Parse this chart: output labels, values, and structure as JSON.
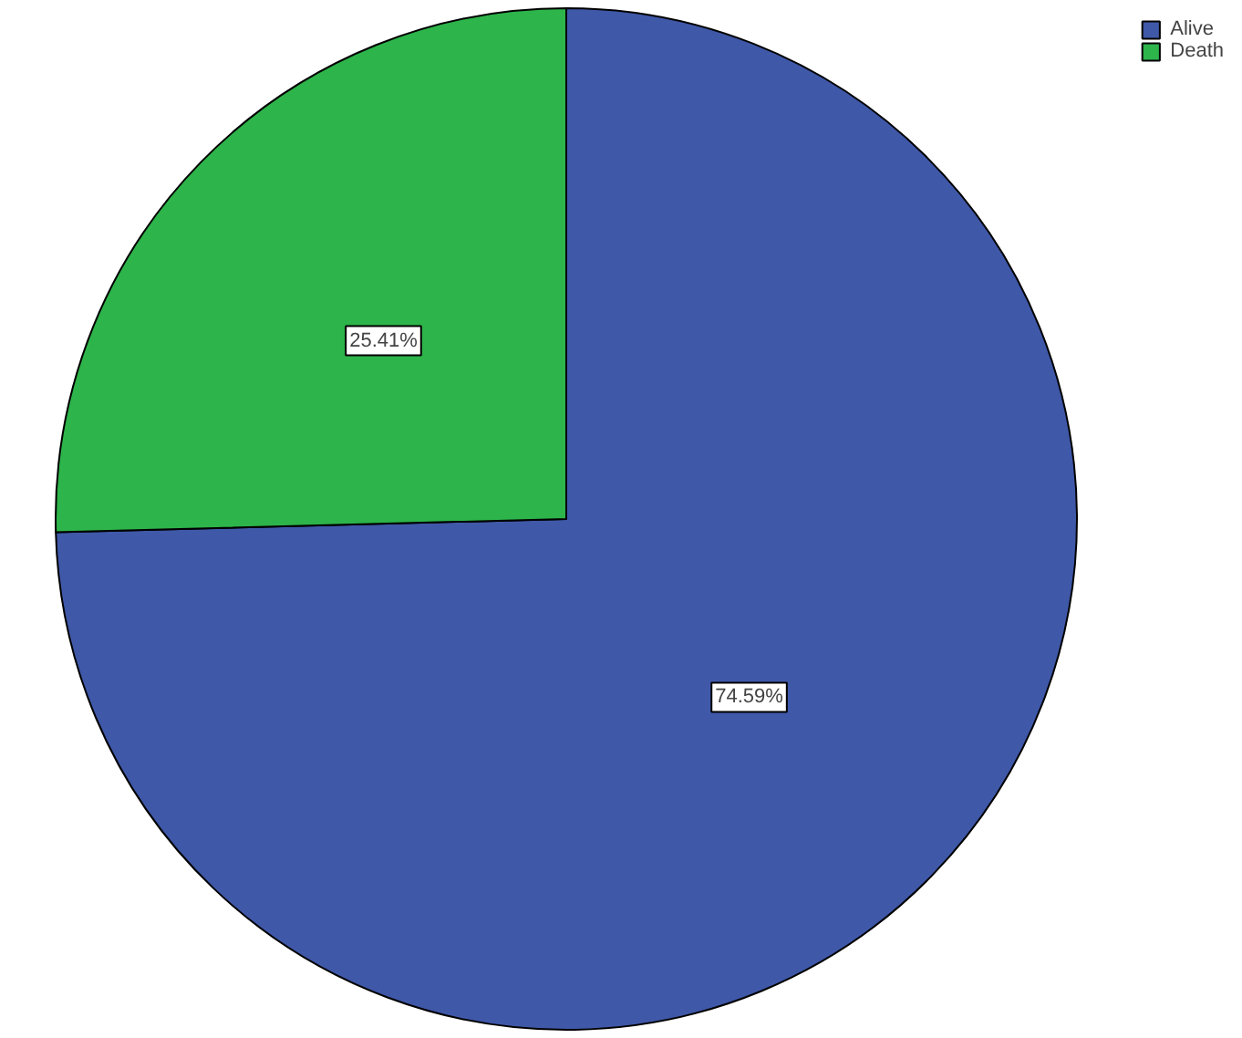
{
  "chart_data": {
    "type": "pie",
    "categories": [
      "Alive",
      "Death"
    ],
    "values": [
      74.59,
      25.41
    ],
    "colors": [
      "#3f58a8",
      "#2db44a"
    ],
    "value_labels": [
      "74.59%",
      "25.41%"
    ],
    "legend": "top right"
  }
}
